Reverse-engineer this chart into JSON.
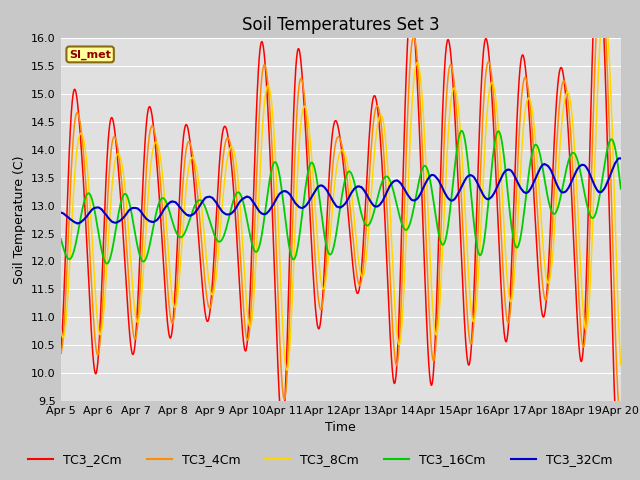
{
  "title": "Soil Temperatures Set 3",
  "xlabel": "Time",
  "ylabel": "Soil Temperature (C)",
  "ylim": [
    9.5,
    16.0
  ],
  "xlim": [
    0,
    15
  ],
  "xtick_labels": [
    "Apr 5",
    "Apr 6",
    "Apr 7",
    "Apr 8",
    "Apr 9",
    "Apr 10",
    "Apr 11",
    "Apr 12",
    "Apr 13",
    "Apr 14",
    "Apr 15",
    "Apr 16",
    "Apr 17",
    "Apr 18",
    "Apr 19",
    "Apr 20"
  ],
  "ytick_values": [
    9.5,
    10.0,
    10.5,
    11.0,
    11.5,
    12.0,
    12.5,
    13.0,
    13.5,
    14.0,
    14.5,
    15.0,
    15.5,
    16.0
  ],
  "series_colors": [
    "#FF0000",
    "#FF8C00",
    "#FFD700",
    "#00CC00",
    "#0000CD"
  ],
  "series_labels": [
    "TC3_2Cm",
    "TC3_4Cm",
    "TC3_8Cm",
    "TC3_16Cm",
    "TC3_32Cm"
  ],
  "fig_bg_color": "#C8C8C8",
  "plot_bg_color": "#E0E0E0",
  "watermark_text": "SI_met",
  "watermark_color": "#8B0000",
  "watermark_bg": "#FFFF99",
  "watermark_border": "#8B6914",
  "grid_color": "#FFFFFF",
  "title_fontsize": 12,
  "label_fontsize": 9,
  "tick_fontsize": 8,
  "legend_fontsize": 9
}
